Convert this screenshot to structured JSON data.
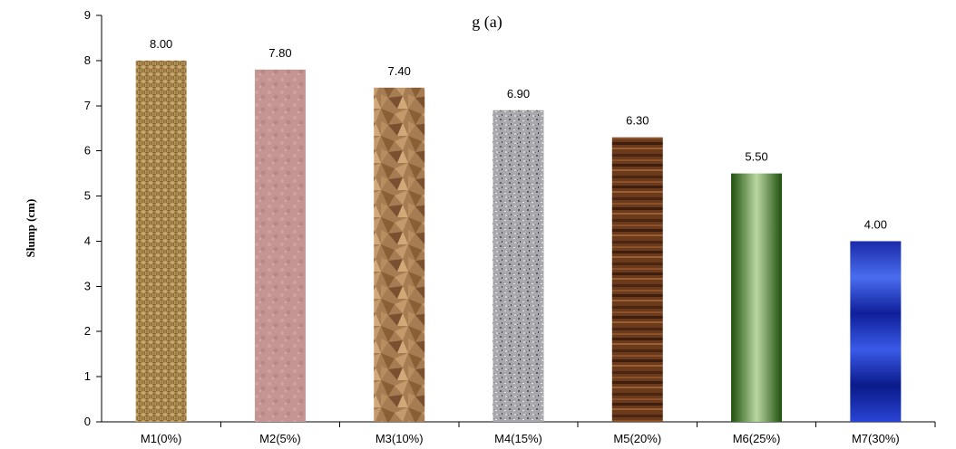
{
  "chart_data": {
    "type": "bar",
    "title": "",
    "title_fragment": "g (a)",
    "xlabel": "",
    "ylabel": "Slump (cm)",
    "categories": [
      "M1(0%)",
      "M2(5%)",
      "M3(10%)",
      "M4(15%)",
      "M5(20%)",
      "M6(25%)",
      "M7(30%)"
    ],
    "values": [
      8.0,
      7.8,
      7.4,
      6.9,
      6.3,
      5.5,
      4.0
    ],
    "data_labels": [
      "8.00",
      "7.80",
      "7.40",
      "6.90",
      "6.30",
      "5.50",
      "4.00"
    ],
    "ylim": [
      0,
      9
    ],
    "yticks": [
      "0",
      "1",
      "2",
      "3",
      "4",
      "5",
      "6",
      "7",
      "8",
      "9"
    ],
    "grid": false,
    "legend": "none",
    "bar_textures": [
      "burlap",
      "pink-tissue",
      "brown-paper",
      "granite",
      "wood-grain",
      "green-gradient",
      "blue-ripple"
    ]
  }
}
